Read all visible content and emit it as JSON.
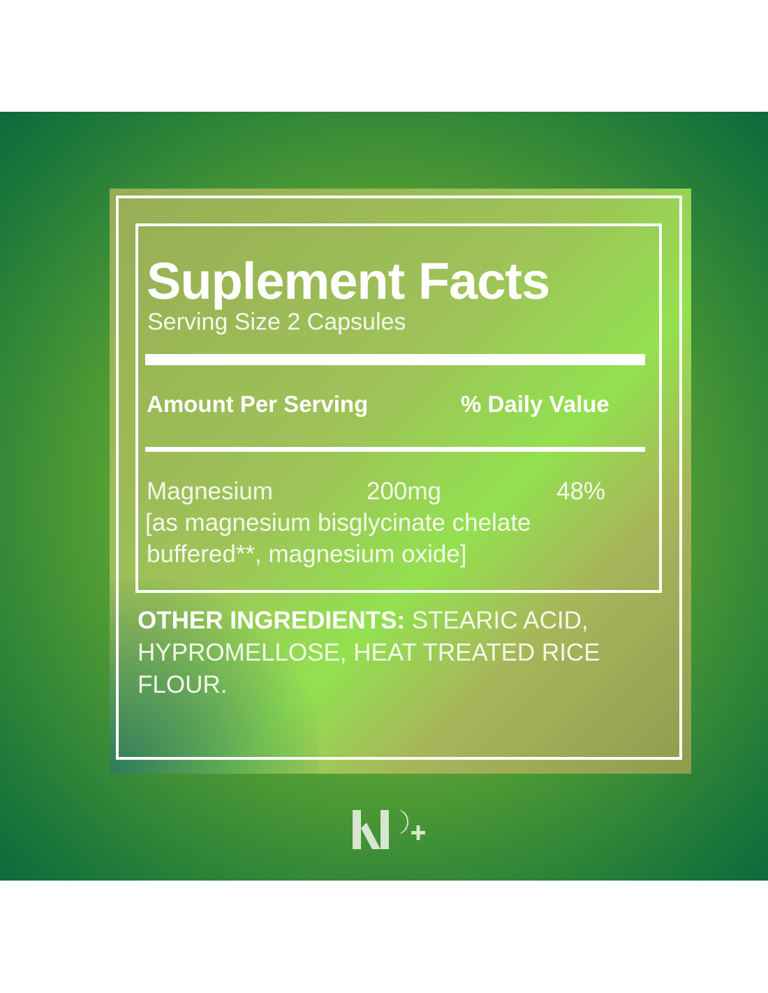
{
  "title": "Suplement Facts",
  "serving_size": "Serving Size 2 Capsules",
  "header": {
    "amount": "Amount Per Serving",
    "daily_value": "% Daily Value"
  },
  "ingredient": {
    "name": "Magnesium",
    "amount": "200mg",
    "dv": "48%",
    "detail_line1": "[as magnesium bisglycinate chelate",
    "detail_line2": "buffered**, magnesium oxide]"
  },
  "other": {
    "label": "OTHER INGREDIENTS:",
    "text": " STEARIC ACID, HYPROMELLOSE, HEAT TREATED RICE FLOUR."
  },
  "logo": "KP+",
  "colors": {
    "accent": "#93e050",
    "background": "#1f7a3a"
  }
}
